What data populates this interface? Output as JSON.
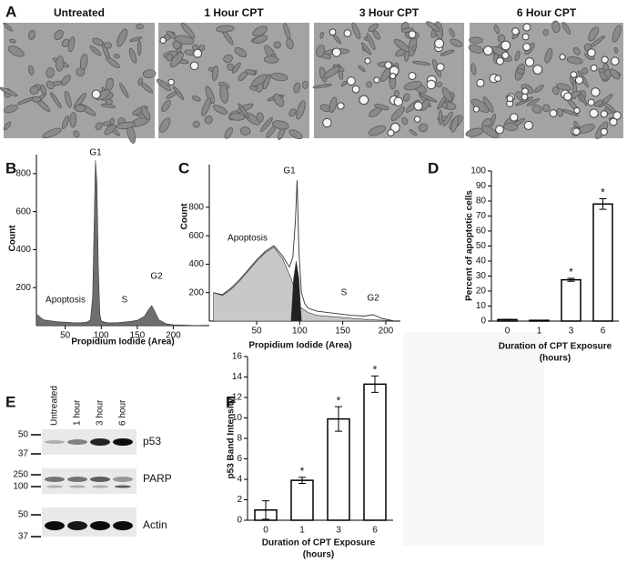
{
  "panels": [
    "A",
    "B",
    "C",
    "D",
    "E",
    "F"
  ],
  "micrographs": [
    "Untreated",
    "1 Hour CPT",
    "3 Hour CPT",
    "6 Hour CPT"
  ],
  "chart_data": [
    {
      "type": "area",
      "x_label": "Propidium Iodide (Area)",
      "y_label": "Count",
      "annotations": [
        "G1",
        "G2",
        "S",
        "Apoptosis"
      ],
      "xlim": [
        10,
        250
      ],
      "ylim": [
        0,
        900
      ],
      "xticks": [
        50,
        100,
        150,
        200
      ],
      "yticks": [
        200,
        400,
        600,
        800
      ],
      "series": [
        {
          "color": "#6e6e6e",
          "filled": true,
          "x": [
            10,
            20,
            30,
            40,
            50,
            60,
            70,
            80,
            85,
            88,
            90,
            92,
            94,
            96,
            98,
            100,
            105,
            110,
            120,
            130,
            140,
            150,
            160,
            165,
            170,
            175,
            180,
            190,
            200,
            220,
            240
          ],
          "values": [
            60,
            30,
            25,
            20,
            18,
            16,
            15,
            18,
            30,
            150,
            500,
            870,
            750,
            300,
            60,
            25,
            18,
            15,
            15,
            18,
            22,
            28,
            50,
            80,
            105,
            70,
            30,
            10,
            5,
            2,
            0
          ]
        }
      ]
    },
    {
      "type": "area",
      "x_label": "Propidium Iodide (Area)",
      "y_label": "Count",
      "annotations": [
        "G1",
        "Apoptosis",
        "S",
        "G2"
      ],
      "xlim": [
        -5,
        217
      ],
      "ylim": [
        0,
        1100
      ],
      "xticks": [
        50,
        100,
        150,
        200
      ],
      "yticks": [
        200,
        400,
        600,
        800
      ],
      "series": [
        {
          "color": "#c8c8c8",
          "filled": true,
          "x": [
            0,
            10,
            20,
            30,
            40,
            50,
            60,
            70,
            80,
            90,
            95,
            100,
            110,
            120,
            140,
            160,
            180,
            200,
            210
          ],
          "values": [
            200,
            180,
            220,
            280,
            350,
            420,
            480,
            520,
            440,
            300,
            200,
            100,
            60,
            40,
            30,
            20,
            10,
            5,
            0
          ]
        },
        {
          "color": "#222222",
          "filled": true,
          "x": [
            90,
            93,
            96,
            99,
            102
          ],
          "values": [
            0,
            300,
            420,
            300,
            0
          ]
        },
        {
          "color": "#333333",
          "filled": false,
          "x": [
            0,
            10,
            20,
            30,
            40,
            50,
            60,
            70,
            80,
            88,
            92,
            95,
            97,
            99,
            102,
            106,
            110,
            120,
            140,
            160,
            175,
            185,
            195,
            210
          ],
          "values": [
            200,
            185,
            230,
            290,
            360,
            430,
            490,
            530,
            460,
            380,
            450,
            700,
            990,
            500,
            200,
            120,
            90,
            70,
            55,
            40,
            35,
            45,
            20,
            0
          ]
        }
      ]
    },
    {
      "type": "bar",
      "x_label": "Duration of CPT Exposure",
      "x_label_2": "(hours)",
      "y_label": "Percent of apoptotic cells",
      "categories": [
        "0",
        "1",
        "3",
        "6"
      ],
      "values": [
        1,
        0.5,
        27.5,
        78
      ],
      "errors": [
        0.2,
        0.1,
        1,
        3.5
      ],
      "significance": [
        null,
        null,
        "*",
        "*"
      ],
      "color": "#ffffff",
      "ylim": [
        0,
        100
      ],
      "yticks": [
        0,
        10,
        20,
        30,
        40,
        50,
        60,
        70,
        80,
        90,
        100
      ]
    },
    {
      "type": "bar",
      "x_label": "Duration of CPT Exposure",
      "x_label_2": "(hours)",
      "y_label": "p53 Band Intensity",
      "categories": [
        "0",
        "1",
        "3",
        "6"
      ],
      "values": [
        1,
        3.9,
        9.9,
        13.3
      ],
      "errors": [
        0.9,
        0.3,
        1.2,
        0.8
      ],
      "significance": [
        null,
        "*",
        "*",
        "*"
      ],
      "color": "#ffffff",
      "ylim": [
        0,
        16
      ],
      "yticks": [
        0,
        2,
        4,
        6,
        8,
        10,
        12,
        14,
        16
      ]
    }
  ],
  "blot": {
    "lanes": [
      "Untreated",
      "1 hour",
      "3 hour",
      "6 hour"
    ],
    "proteins": [
      "p53",
      "PARP",
      "Actin"
    ],
    "markers": [
      [
        50,
        37
      ],
      [
        250,
        100
      ],
      [
        50,
        37
      ]
    ]
  }
}
